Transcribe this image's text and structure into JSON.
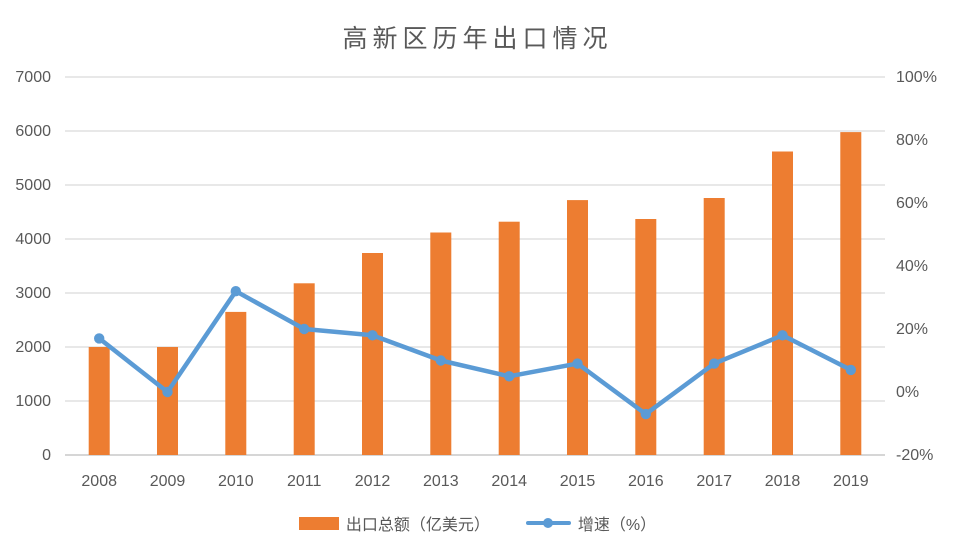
{
  "chart": {
    "title": "高新区历年出口情况",
    "legend": [
      "出口总额（亿美元）",
      "增速（%）"
    ]
  },
  "colors": {
    "bar_series": "#ED7D31",
    "line_series": "#5B9BD5",
    "gridline": "#D9D9D9",
    "axis_line": "#C9C9C9",
    "label_text": "#595959"
  },
  "chart_data": {
    "type": "bar",
    "subtype": "bar-line-combo",
    "title": "高新区历年出口情况",
    "categories": [
      "2008",
      "2009",
      "2010",
      "2011",
      "2012",
      "2013",
      "2014",
      "2015",
      "2016",
      "2017",
      "2018",
      "2019"
    ],
    "series": [
      {
        "name": "出口总额（亿美元）",
        "type": "bar",
        "axis": "left",
        "values": [
          2000,
          2000,
          2650,
          3180,
          3740,
          4120,
          4320,
          4720,
          4370,
          4760,
          5620,
          5980
        ]
      },
      {
        "name": "增速（%）",
        "type": "line",
        "axis": "right",
        "values": [
          17,
          0,
          32,
          20,
          18,
          10,
          5,
          9,
          -7,
          9,
          18,
          7
        ]
      }
    ],
    "left_axis": {
      "min": 0,
      "max": 7000,
      "step": 1000,
      "tick_labels": [
        "0",
        "1000",
        "2000",
        "3000",
        "4000",
        "5000",
        "6000",
        "7000"
      ]
    },
    "right_axis": {
      "min": -20,
      "max": 100,
      "step": 20,
      "tick_labels": [
        "-20%",
        "0%",
        "20%",
        "40%",
        "60%",
        "80%",
        "100%"
      ]
    },
    "xlabel": "",
    "ylabel": "",
    "grid": true,
    "legend_position": "bottom"
  }
}
